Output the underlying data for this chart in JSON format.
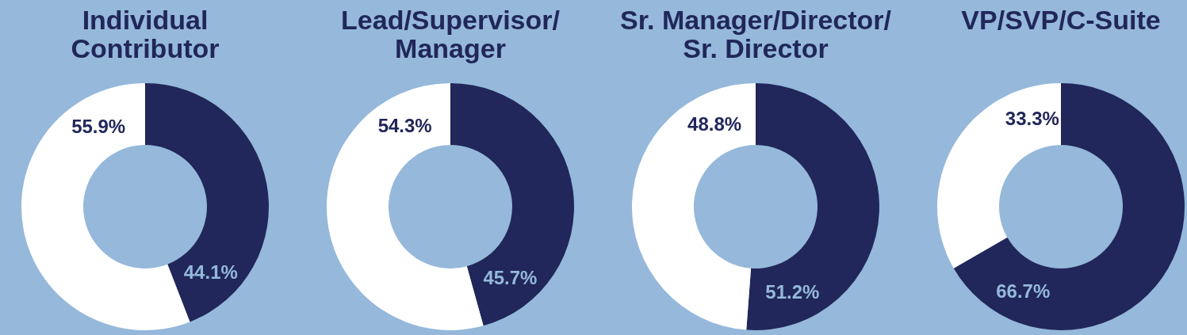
{
  "chart_data": [
    {
      "type": "donut",
      "title": "Individual Contributor",
      "categories": [
        null,
        null
      ],
      "values": [
        44.1,
        55.9
      ],
      "colors": [
        "#21275a",
        "#ffffff"
      ],
      "value_labels": [
        "44.1%",
        "55.9%"
      ]
    },
    {
      "type": "donut",
      "title": "Lead/Supervisor/Manager",
      "categories": [
        null,
        null
      ],
      "values": [
        45.7,
        54.3
      ],
      "colors": [
        "#21275a",
        "#ffffff"
      ],
      "value_labels": [
        "45.7%",
        "54.3%"
      ]
    },
    {
      "type": "donut",
      "title": "Sr. Manager/Director/Sr. Director",
      "categories": [
        null,
        null
      ],
      "values": [
        51.2,
        48.8
      ],
      "colors": [
        "#21275a",
        "#ffffff"
      ],
      "value_labels": [
        "51.2%",
        "48.8%"
      ]
    },
    {
      "type": "donut",
      "title": "VP/SVP/C-Suite",
      "categories": [
        null,
        null
      ],
      "values": [
        66.7,
        33.3
      ],
      "colors": [
        "#21275a",
        "#ffffff"
      ],
      "value_labels": [
        "66.7%",
        "33.3%"
      ]
    }
  ]
}
